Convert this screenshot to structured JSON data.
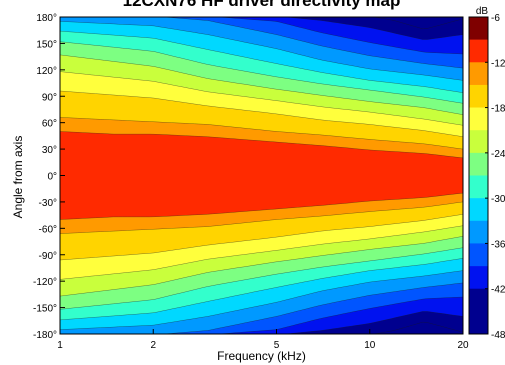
{
  "chart_data": {
    "type": "heatmap",
    "title": "12CXN76 HF driver directivity map",
    "xlabel": "Frequency (kHz)",
    "ylabel": "Angle from axis",
    "x_scale": "log",
    "xlim": [
      1,
      20
    ],
    "x_ticks": [
      1,
      2,
      5,
      10,
      20
    ],
    "x_tick_labels": [
      "1",
      "2",
      "5",
      "10",
      "20"
    ],
    "ylim": [
      -180,
      180
    ],
    "y_ticks": [
      180,
      150,
      120,
      90,
      60,
      30,
      0,
      -30,
      -60,
      -90,
      -120,
      -150,
      -180
    ],
    "y_tick_labels": [
      "180°",
      "150°",
      "120°",
      "90°",
      "60°",
      "30°",
      "0°",
      "-30°",
      "-60°",
      "-90°",
      "-120°",
      "-150°",
      "-180°"
    ],
    "colorbar": {
      "unit_label": "dB",
      "range": [
        -48,
        -6
      ],
      "ticks": [
        -6,
        -12,
        -18,
        -24,
        -30,
        -36,
        -42,
        -48
      ],
      "tick_labels": [
        "-6",
        "-12",
        "-18",
        "-24",
        "-30",
        "-36",
        "-42",
        "-48"
      ],
      "levels": [
        {
          "from": -9,
          "to": -6,
          "color": "#7f0000"
        },
        {
          "from": -12,
          "to": -9,
          "color": "#ff2a00"
        },
        {
          "from": -15,
          "to": -12,
          "color": "#ff9a00"
        },
        {
          "from": -18,
          "to": -15,
          "color": "#ffd400"
        },
        {
          "from": -21,
          "to": -18,
          "color": "#ffff3c"
        },
        {
          "from": -24,
          "to": -21,
          "color": "#c9ff3c"
        },
        {
          "from": -27,
          "to": -24,
          "color": "#7dff82"
        },
        {
          "from": -30,
          "to": -27,
          "color": "#33ffcc"
        },
        {
          "from": -33,
          "to": -30,
          "color": "#00d8ff"
        },
        {
          "from": -36,
          "to": -33,
          "color": "#0099ff"
        },
        {
          "from": -39,
          "to": -36,
          "color": "#0055ff"
        },
        {
          "from": -42,
          "to": -39,
          "color": "#0012f0"
        },
        {
          "from": -48,
          "to": -42,
          "color": "#00008f"
        }
      ]
    },
    "level_contours_db": [
      {
        "level": -9,
        "half_width_deg": [
          [
            1,
            50
          ],
          [
            1.5,
            47
          ],
          [
            2,
            47
          ],
          [
            3,
            44
          ],
          [
            5,
            38
          ],
          [
            7,
            34
          ],
          [
            10,
            29
          ],
          [
            15,
            25
          ],
          [
            20,
            20
          ]
        ]
      },
      {
        "level": -12,
        "half_width_deg": [
          [
            1,
            66
          ],
          [
            2,
            61
          ],
          [
            3,
            58
          ],
          [
            5,
            50
          ],
          [
            7,
            46
          ],
          [
            10,
            41
          ],
          [
            15,
            36
          ],
          [
            20,
            30
          ]
        ]
      },
      {
        "level": -15,
        "half_width_deg": [
          [
            1,
            96
          ],
          [
            2,
            88
          ],
          [
            3,
            79
          ],
          [
            5,
            70
          ],
          [
            7,
            63
          ],
          [
            10,
            58
          ],
          [
            15,
            51
          ],
          [
            20,
            44
          ]
        ]
      },
      {
        "level": -18,
        "half_width_deg": [
          [
            1,
            118
          ],
          [
            2,
            107
          ],
          [
            3,
            95
          ],
          [
            5,
            85
          ],
          [
            7,
            78
          ],
          [
            10,
            72
          ],
          [
            15,
            64
          ],
          [
            20,
            57
          ]
        ]
      },
      {
        "level": -21,
        "half_width_deg": [
          [
            1,
            137
          ],
          [
            2,
            124
          ],
          [
            3,
            110
          ],
          [
            5,
            98
          ],
          [
            7,
            91
          ],
          [
            10,
            84
          ],
          [
            15,
            77
          ],
          [
            20,
            69
          ]
        ]
      },
      {
        "level": -24,
        "half_width_deg": [
          [
            1,
            152
          ],
          [
            2,
            141
          ],
          [
            3,
            126
          ],
          [
            5,
            112
          ],
          [
            7,
            104
          ],
          [
            10,
            97
          ],
          [
            15,
            89
          ],
          [
            20,
            82
          ]
        ]
      },
      {
        "level": -27,
        "half_width_deg": [
          [
            1,
            164
          ],
          [
            2,
            156
          ],
          [
            3,
            143
          ],
          [
            5,
            127
          ],
          [
            7,
            117
          ],
          [
            10,
            108
          ],
          [
            15,
            101
          ],
          [
            20,
            94
          ]
        ]
      },
      {
        "level": -30,
        "half_width_deg": [
          [
            1,
            175
          ],
          [
            2,
            170
          ],
          [
            3,
            160
          ],
          [
            5,
            144
          ],
          [
            7,
            131
          ],
          [
            10,
            121
          ],
          [
            15,
            114
          ],
          [
            20,
            108
          ]
        ]
      },
      {
        "level": -33,
        "half_width_deg": [
          [
            1,
            181
          ],
          [
            2,
            181
          ],
          [
            3,
            176
          ],
          [
            5,
            160
          ],
          [
            7,
            147
          ],
          [
            10,
            136
          ],
          [
            15,
            127
          ],
          [
            20,
            122
          ]
        ]
      },
      {
        "level": -36,
        "half_width_deg": [
          [
            1,
            181
          ],
          [
            3,
            181
          ],
          [
            5,
            175
          ],
          [
            7,
            162
          ],
          [
            10,
            151
          ],
          [
            15,
            140
          ],
          [
            20,
            138
          ]
        ]
      },
      {
        "level": -39,
        "half_width_deg": [
          [
            1,
            181
          ],
          [
            5,
            181
          ],
          [
            7,
            176
          ],
          [
            10,
            168
          ],
          [
            15,
            154
          ],
          [
            20,
            160
          ]
        ]
      },
      {
        "level": -42,
        "half_width_deg": [
          [
            1,
            181
          ],
          [
            10,
            181
          ],
          [
            12,
            176
          ],
          [
            15,
            166
          ],
          [
            20,
            178
          ]
        ]
      }
    ]
  }
}
